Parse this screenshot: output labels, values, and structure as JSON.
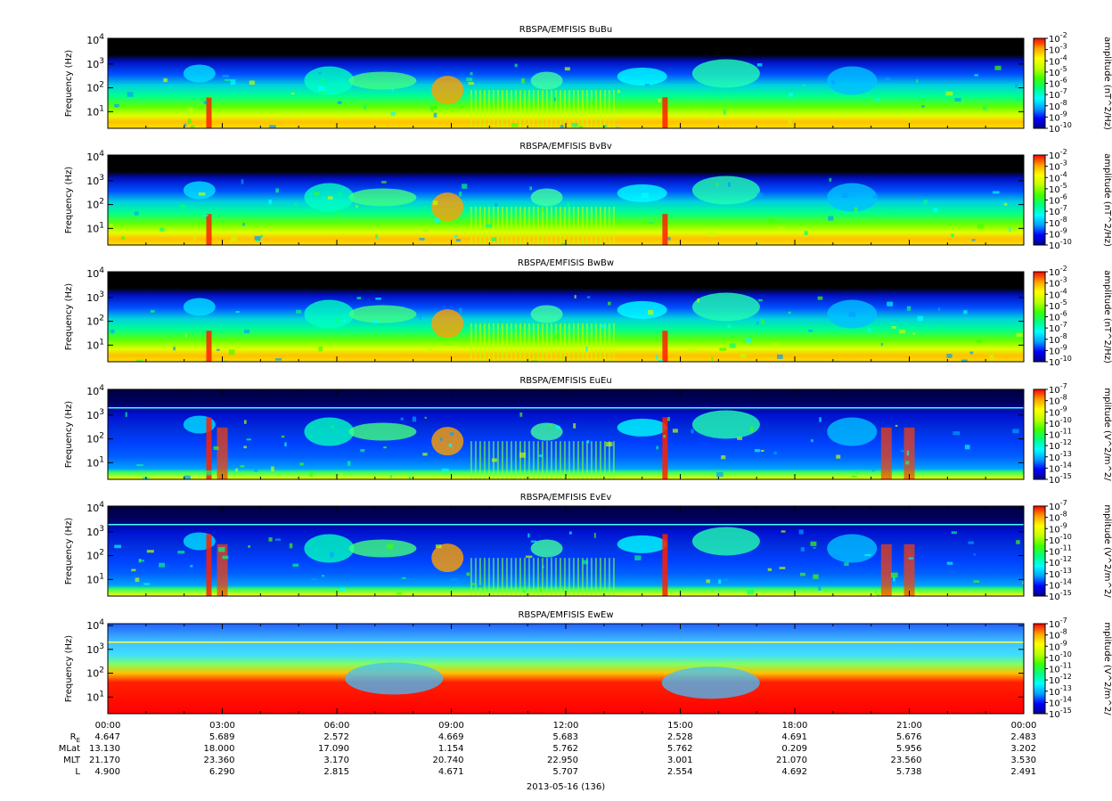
{
  "chart_data": {
    "type": "heatmap",
    "x_axis": {
      "range": [
        "00:00",
        "24:00"
      ],
      "tick_labels": [
        "00:00",
        "03:00",
        "06:00",
        "09:00",
        "12:00",
        "15:00",
        "18:00",
        "21:00",
        "00:00"
      ],
      "date_label": "2013-05-16 (136)"
    },
    "y_axis": {
      "label": "Frequency (Hz)",
      "scale": "log",
      "range": [
        2,
        12000
      ],
      "ticks": [
        {
          "base": "10",
          "exp": "1"
        },
        {
          "base": "10",
          "exp": "2"
        },
        {
          "base": "10",
          "exp": "3"
        },
        {
          "base": "10",
          "exp": "4"
        }
      ]
    },
    "colormap": [
      "#00008c",
      "#0000ff",
      "#00a0ff",
      "#00ffff",
      "#00ff80",
      "#40ff00",
      "#c0ff00",
      "#ffff00",
      "#ffa000",
      "#ff0000"
    ],
    "panels": [
      {
        "title": "RBSPA/EMFISIS  BuBu",
        "colorbar_label": "amplitude (nT^2/Hz)",
        "colorbar_ticks": [
          {
            "exp": "-2"
          },
          {
            "exp": "-3"
          },
          {
            "exp": "-4"
          },
          {
            "exp": "-5"
          },
          {
            "exp": "-6"
          },
          {
            "exp": "-7"
          },
          {
            "exp": "-8"
          },
          {
            "exp": "-9"
          },
          {
            "exp": "-10"
          }
        ]
      },
      {
        "title": "RBSPA/EMFISIS  BvBv",
        "colorbar_label": "amplitude (nT^2/Hz)",
        "colorbar_ticks": [
          {
            "exp": "-2"
          },
          {
            "exp": "-3"
          },
          {
            "exp": "-4"
          },
          {
            "exp": "-5"
          },
          {
            "exp": "-6"
          },
          {
            "exp": "-7"
          },
          {
            "exp": "-8"
          },
          {
            "exp": "-9"
          },
          {
            "exp": "-10"
          }
        ]
      },
      {
        "title": "RBSPA/EMFISIS  BwBw",
        "colorbar_label": "amplitude (nT^2/Hz)",
        "colorbar_ticks": [
          {
            "exp": "-2"
          },
          {
            "exp": "-3"
          },
          {
            "exp": "-4"
          },
          {
            "exp": "-5"
          },
          {
            "exp": "-6"
          },
          {
            "exp": "-7"
          },
          {
            "exp": "-8"
          },
          {
            "exp": "-9"
          },
          {
            "exp": "-10"
          }
        ]
      },
      {
        "title": "RBSPA/EMFISIS  EuEu",
        "colorbar_label": "mplitude (V^2/m^2/",
        "colorbar_ticks": [
          {
            "exp": "-7"
          },
          {
            "exp": "-8"
          },
          {
            "exp": "-9"
          },
          {
            "exp": "-10"
          },
          {
            "exp": "-11"
          },
          {
            "exp": "-12"
          },
          {
            "exp": "-13"
          },
          {
            "exp": "-14"
          },
          {
            "exp": "-15"
          }
        ]
      },
      {
        "title": "RBSPA/EMFISIS  EvEv",
        "colorbar_label": "mplitude (V^2/m^2/",
        "colorbar_ticks": [
          {
            "exp": "-7"
          },
          {
            "exp": "-8"
          },
          {
            "exp": "-9"
          },
          {
            "exp": "-10"
          },
          {
            "exp": "-11"
          },
          {
            "exp": "-12"
          },
          {
            "exp": "-13"
          },
          {
            "exp": "-14"
          },
          {
            "exp": "-15"
          }
        ]
      },
      {
        "title": "RBSPA/EMFISIS  EwEw",
        "colorbar_label": "mplitude (V^2/m^2/",
        "colorbar_ticks": [
          {
            "exp": "-7"
          },
          {
            "exp": "-8"
          },
          {
            "exp": "-9"
          },
          {
            "exp": "-10"
          },
          {
            "exp": "-11"
          },
          {
            "exp": "-12"
          },
          {
            "exp": "-13"
          },
          {
            "exp": "-14"
          },
          {
            "exp": "-15"
          }
        ]
      }
    ],
    "ephemeris": {
      "rows": [
        {
          "label_main": "R",
          "label_sub": "E",
          "values": [
            "4.647",
            "5.689",
            "2.572",
            "4.669",
            "5.683",
            "2.528",
            "4.691",
            "5.676",
            "2.483"
          ]
        },
        {
          "label_main": "MLat",
          "label_sub": "",
          "values": [
            "13.130",
            "18.000",
            "17.090",
            "1.154",
            "5.762",
            "5.762",
            "0.209",
            "5.956",
            "3.202"
          ]
        },
        {
          "label_main": "MLT",
          "label_sub": "",
          "values": [
            "21.170",
            "23.360",
            "3.170",
            "20.740",
            "22.950",
            "3.001",
            "21.070",
            "23.560",
            "3.530"
          ]
        },
        {
          "label_main": "L",
          "label_sub": "",
          "values": [
            "4.900",
            "6.290",
            "2.815",
            "4.671",
            "5.707",
            "2.554",
            "4.692",
            "5.738",
            "2.491"
          ]
        }
      ]
    }
  }
}
